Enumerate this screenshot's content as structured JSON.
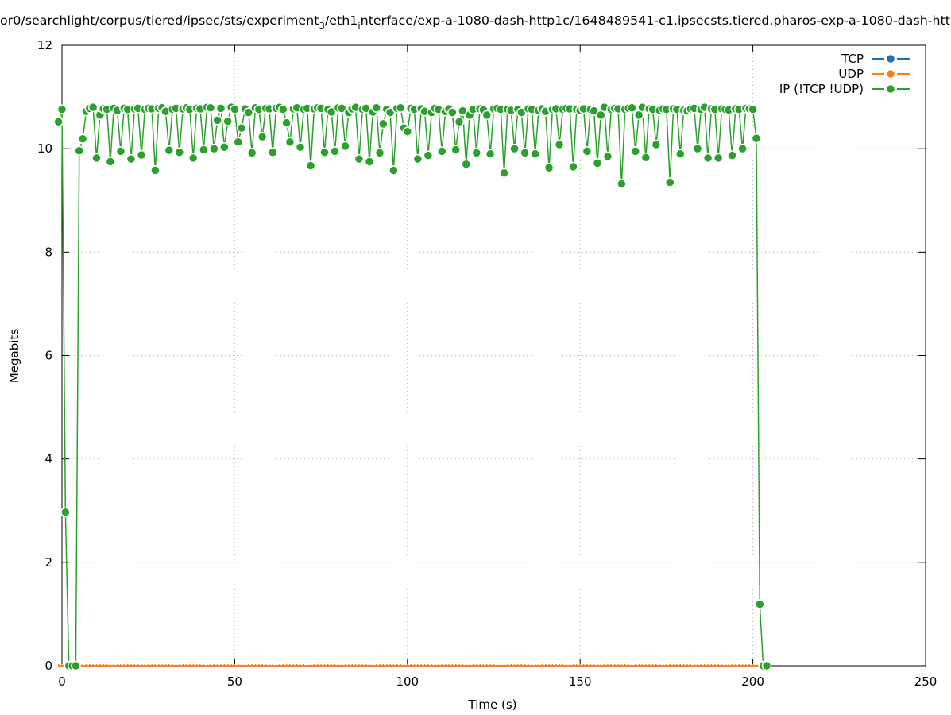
{
  "chart_data": {
    "type": "line",
    "title": [
      "or0/searchlight/corpus/tiered/ipsec/sts/experiment",
      "3",
      "/eth1",
      "i",
      "nterface/exp-a-1080-dash-http1c/1648489541-c1.ipsecsts.tiered.pharos-exp-a-1080-dash-htt"
    ],
    "x_label": "Time (s)",
    "y_label": "Megabits",
    "xlim": [
      0,
      250
    ],
    "xticks": [
      0,
      50,
      100,
      150,
      200,
      250
    ],
    "ylim": [
      0,
      12
    ],
    "yticks": [
      0,
      2,
      4,
      6,
      8,
      10,
      12
    ],
    "grid": true,
    "legend": "top right",
    "x": [
      -1,
      0,
      1,
      2,
      3,
      4,
      5,
      6,
      7,
      8,
      9,
      10,
      11,
      12,
      13,
      14,
      15,
      16,
      17,
      18,
      19,
      20,
      21,
      22,
      23,
      24,
      25,
      26,
      27,
      28,
      29,
      30,
      31,
      32,
      33,
      34,
      35,
      36,
      37,
      38,
      39,
      40,
      41,
      42,
      43,
      44,
      45,
      46,
      47,
      48,
      49,
      50,
      51,
      52,
      53,
      54,
      55,
      56,
      57,
      58,
      59,
      60,
      61,
      62,
      63,
      64,
      65,
      66,
      67,
      68,
      69,
      70,
      71,
      72,
      73,
      74,
      75,
      76,
      77,
      78,
      79,
      80,
      81,
      82,
      83,
      84,
      85,
      86,
      87,
      88,
      89,
      90,
      91,
      92,
      93,
      94,
      95,
      96,
      97,
      98,
      99,
      100,
      101,
      102,
      103,
      104,
      105,
      106,
      107,
      108,
      109,
      110,
      111,
      112,
      113,
      114,
      115,
      116,
      117,
      118,
      119,
      120,
      121,
      122,
      123,
      124,
      125,
      126,
      127,
      128,
      129,
      130,
      131,
      132,
      133,
      134,
      135,
      136,
      137,
      138,
      139,
      140,
      141,
      142,
      143,
      144,
      145,
      146,
      147,
      148,
      149,
      150,
      151,
      152,
      153,
      154,
      155,
      156,
      157,
      158,
      159,
      160,
      161,
      162,
      163,
      164,
      165,
      166,
      167,
      168,
      169,
      170,
      171,
      172,
      173,
      174,
      175,
      176,
      177,
      178,
      179,
      180,
      181,
      182,
      183,
      184,
      185,
      186,
      187,
      188,
      189,
      190,
      191,
      192,
      193,
      194,
      195,
      196,
      197,
      198,
      199,
      200,
      201,
      202,
      203,
      204
    ],
    "series": [
      {
        "name": "TCP",
        "color": "#1f6fb4",
        "marker": "dash",
        "values": [
          0,
          0,
          0,
          0,
          0,
          0,
          0,
          0,
          0,
          0,
          0,
          0,
          0,
          0,
          0,
          0,
          0,
          0,
          0,
          0,
          0,
          0,
          0,
          0,
          0,
          0,
          0,
          0,
          0,
          0,
          0,
          0,
          0,
          0,
          0,
          0,
          0,
          0,
          0,
          0,
          0,
          0,
          0,
          0,
          0,
          0,
          0,
          0,
          0,
          0,
          0,
          0,
          0,
          0,
          0,
          0,
          0,
          0,
          0,
          0,
          0,
          0,
          0,
          0,
          0,
          0,
          0,
          0,
          0,
          0,
          0,
          0,
          0,
          0,
          0,
          0,
          0,
          0,
          0,
          0,
          0,
          0,
          0,
          0,
          0,
          0,
          0,
          0,
          0,
          0,
          0,
          0,
          0,
          0,
          0,
          0,
          0,
          0,
          0,
          0,
          0,
          0,
          0,
          0,
          0,
          0,
          0,
          0,
          0,
          0,
          0,
          0,
          0,
          0,
          0,
          0,
          0,
          0,
          0,
          0,
          0,
          0,
          0,
          0,
          0,
          0,
          0,
          0,
          0,
          0,
          0,
          0,
          0,
          0,
          0,
          0,
          0,
          0,
          0,
          0,
          0,
          0,
          0,
          0,
          0,
          0,
          0,
          0,
          0,
          0,
          0,
          0,
          0,
          0,
          0,
          0,
          0,
          0,
          0,
          0,
          0,
          0,
          0,
          0,
          0,
          0,
          0,
          0,
          0,
          0,
          0,
          0,
          0,
          0,
          0,
          0,
          0,
          0,
          0,
          0,
          0,
          0,
          0,
          0,
          0,
          0,
          0,
          0,
          0,
          0,
          0,
          0,
          0,
          0,
          0,
          0,
          0,
          0,
          0,
          0,
          0,
          0,
          0,
          0,
          0,
          0
        ]
      },
      {
        "name": "UDP",
        "color": "#ff7f0e",
        "marker": "dash",
        "values": [
          0,
          0,
          0,
          0,
          0,
          0,
          0,
          0,
          0,
          0,
          0,
          0,
          0,
          0,
          0,
          0,
          0,
          0,
          0,
          0,
          0,
          0,
          0,
          0,
          0,
          0,
          0,
          0,
          0,
          0,
          0,
          0,
          0,
          0,
          0,
          0,
          0,
          0,
          0,
          0,
          0,
          0,
          0,
          0,
          0,
          0,
          0,
          0,
          0,
          0,
          0,
          0,
          0,
          0,
          0,
          0,
          0,
          0,
          0,
          0,
          0,
          0,
          0,
          0,
          0,
          0,
          0,
          0,
          0,
          0,
          0,
          0,
          0,
          0,
          0,
          0,
          0,
          0,
          0,
          0,
          0,
          0,
          0,
          0,
          0,
          0,
          0,
          0,
          0,
          0,
          0,
          0,
          0,
          0,
          0,
          0,
          0,
          0,
          0,
          0,
          0,
          0,
          0,
          0,
          0,
          0,
          0,
          0,
          0,
          0,
          0,
          0,
          0,
          0,
          0,
          0,
          0,
          0,
          0,
          0,
          0,
          0,
          0,
          0,
          0,
          0,
          0,
          0,
          0,
          0,
          0,
          0,
          0,
          0,
          0,
          0,
          0,
          0,
          0,
          0,
          0,
          0,
          0,
          0,
          0,
          0,
          0,
          0,
          0,
          0,
          0,
          0,
          0,
          0,
          0,
          0,
          0,
          0,
          0,
          0,
          0,
          0,
          0,
          0,
          0,
          0,
          0,
          0,
          0,
          0,
          0,
          0,
          0,
          0,
          0,
          0,
          0,
          0,
          0,
          0,
          0,
          0,
          0,
          0,
          0,
          0,
          0,
          0,
          0,
          0,
          0,
          0,
          0,
          0,
          0,
          0,
          0,
          0,
          0,
          0,
          0,
          0,
          0,
          0,
          0,
          0
        ]
      },
      {
        "name": "IP (!TCP  !UDP)",
        "color": "#2ca02c",
        "marker": "circle",
        "values": [
          10.52,
          10.76,
          2.97,
          0,
          0,
          0,
          9.96,
          10.19,
          10.72,
          10.78,
          10.8,
          9.82,
          10.65,
          10.77,
          10.76,
          9.75,
          10.78,
          10.74,
          9.95,
          10.78,
          10.76,
          9.8,
          10.77,
          10.78,
          9.88,
          10.76,
          10.78,
          10.77,
          9.58,
          10.78,
          10.79,
          10.72,
          9.97,
          10.76,
          10.78,
          9.93,
          10.77,
          10.79,
          10.76,
          9.82,
          10.78,
          10.77,
          9.98,
          10.8,
          10.79,
          10.0,
          10.55,
          10.78,
          10.03,
          10.53,
          10.8,
          10.76,
          10.13,
          10.4,
          10.77,
          10.7,
          9.92,
          10.79,
          10.76,
          10.23,
          10.78,
          10.77,
          9.93,
          10.78,
          10.8,
          10.76,
          10.5,
          10.13,
          10.77,
          10.79,
          10.03,
          10.76,
          10.78,
          9.67,
          10.77,
          10.79,
          10.78,
          9.93,
          10.76,
          10.71,
          9.95,
          10.79,
          10.78,
          10.05,
          10.7,
          10.77,
          10.8,
          9.8,
          10.76,
          10.78,
          9.75,
          10.71,
          10.79,
          9.92,
          10.48,
          10.76,
          10.7,
          9.58,
          10.78,
          10.79,
          10.4,
          10.33,
          10.78,
          10.76,
          9.8,
          10.77,
          10.72,
          9.87,
          10.7,
          10.78,
          10.76,
          9.95,
          10.72,
          10.77,
          10.7,
          9.98,
          10.52,
          10.73,
          9.7,
          10.65,
          10.76,
          9.92,
          10.77,
          10.75,
          10.65,
          9.9,
          10.77,
          10.78,
          10.76,
          9.53,
          10.76,
          10.74,
          10.0,
          10.76,
          10.7,
          9.92,
          10.77,
          10.76,
          9.9,
          10.74,
          10.77,
          10.72,
          9.63,
          10.76,
          10.77,
          10.08,
          10.76,
          10.78,
          10.77,
          9.65,
          10.76,
          10.74,
          10.77,
          9.95,
          10.76,
          10.73,
          9.72,
          10.65,
          10.8,
          9.85,
          10.76,
          10.78,
          10.77,
          9.32,
          10.76,
          10.78,
          10.79,
          9.95,
          10.65,
          10.8,
          9.83,
          10.77,
          10.76,
          10.08,
          10.74,
          10.77,
          10.76,
          9.35,
          10.77,
          10.76,
          9.9,
          10.74,
          10.73,
          10.77,
          10.78,
          10.0,
          10.76,
          10.8,
          9.82,
          10.77,
          10.76,
          9.82,
          10.77,
          10.76,
          10.75,
          9.87,
          10.77,
          10.76,
          10.0,
          10.78,
          10.77,
          10.76,
          10.2,
          1.19,
          0,
          0
        ]
      }
    ]
  }
}
